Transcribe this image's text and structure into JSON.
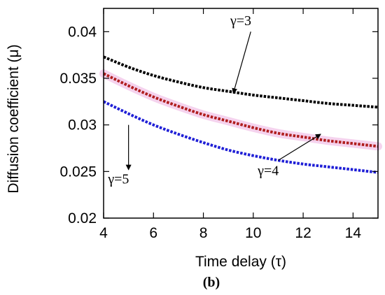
{
  "chart_data": {
    "type": "line",
    "xlabel": "Time delay (τ)",
    "ylabel": "Diffusion coefficient (μ)",
    "panel_label": "(b)",
    "xlim": [
      4,
      15
    ],
    "ylim": [
      0.02,
      0.0425
    ],
    "xticks": [
      4,
      6,
      8,
      10,
      12,
      14
    ],
    "xtick_labels": [
      "4",
      "6",
      "8",
      "10",
      "12",
      "14"
    ],
    "yticks": [
      0.02,
      0.025,
      0.03,
      0.035,
      0.04
    ],
    "ytick_labels": [
      "0.02",
      "0.025",
      "0.03",
      "0.035",
      "0.04"
    ],
    "grid": false,
    "legend": "none",
    "series": [
      {
        "label": "γ=3",
        "color": "#000000",
        "x": [
          4,
          5,
          6,
          7,
          8,
          9,
          10,
          11,
          12,
          13,
          14,
          15
        ],
        "y": [
          0.0373,
          0.0362,
          0.0353,
          0.0346,
          0.034,
          0.0336,
          0.0332,
          0.0329,
          0.0326,
          0.0323,
          0.0321,
          0.0319
        ]
      },
      {
        "label": "γ=4",
        "color": "#b01e1e",
        "highlight": "#f3c8ea",
        "x": [
          4,
          5,
          6,
          7,
          8,
          9,
          10,
          11,
          12,
          13,
          14,
          15
        ],
        "y": [
          0.0355,
          0.0342,
          0.033,
          0.032,
          0.0311,
          0.0304,
          0.0297,
          0.0291,
          0.0287,
          0.0283,
          0.028,
          0.0277
        ]
      },
      {
        "label": "γ=5",
        "color": "#1f1fd6",
        "x": [
          4,
          5,
          6,
          7,
          8,
          9,
          10,
          11,
          12,
          13,
          14,
          15
        ],
        "y": [
          0.0325,
          0.0312,
          0.03,
          0.029,
          0.0281,
          0.0273,
          0.0267,
          0.0262,
          0.0258,
          0.0255,
          0.0252,
          0.0249
        ]
      }
    ],
    "annotations": [
      {
        "text": "γ=3",
        "arrow_from": [
          9.9,
          0.04
        ],
        "arrow_to": [
          9.2,
          0.0334
        ],
        "text_at": [
          9.5,
          0.0407
        ]
      },
      {
        "text": "γ=4",
        "arrow_from": [
          11.0,
          0.0262
        ],
        "arrow_to": [
          12.7,
          0.029
        ],
        "text_at": [
          10.6,
          0.0246
        ]
      },
      {
        "text": "γ=5",
        "arrow_from": [
          5.0,
          0.03
        ],
        "arrow_to": [
          5.0,
          0.0252
        ],
        "text_at": [
          4.6,
          0.0237
        ]
      }
    ]
  }
}
